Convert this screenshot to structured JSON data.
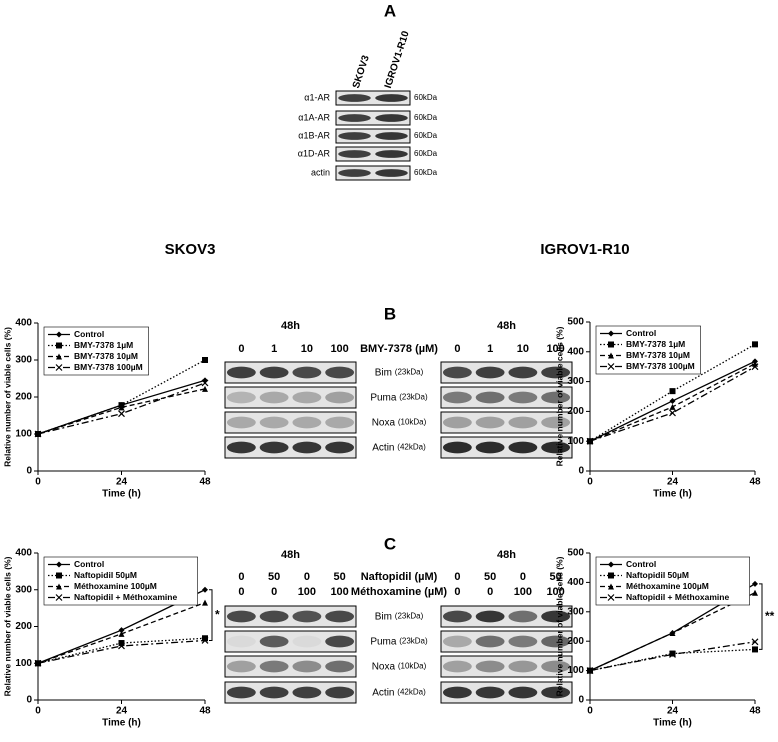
{
  "panel_labels": [
    "A",
    "B",
    "C"
  ],
  "section_titles": [
    "SKOV3",
    "IGROV1-R10"
  ],
  "panel_a": {
    "columns": [
      "SKOV3",
      "IGROV1-R10"
    ],
    "rows": [
      {
        "label": "α1-AR",
        "size": "60kDa"
      },
      {
        "label": "α1A-AR",
        "size": "60kDa"
      },
      {
        "label": "α1B-AR",
        "size": "60kDa"
      },
      {
        "label": "α1D-AR",
        "size": "60kDa"
      },
      {
        "label": "actin",
        "size": "60kDa"
      }
    ]
  },
  "panel_b_blots": {
    "times": [
      "48h",
      "48h"
    ],
    "treatments": [
      {
        "label": "BMY-7378 (µM)",
        "doses": [
          0,
          1,
          10,
          100
        ]
      }
    ],
    "rows": [
      {
        "label": "Bim",
        "size": "(23kDa)"
      },
      {
        "label": "Puma",
        "size": "(23kDa)"
      },
      {
        "label": "Noxa",
        "size": "(10kDa)"
      },
      {
        "label": "Actin",
        "size": "(42kDa)"
      }
    ]
  },
  "panel_c_blots": {
    "times": [
      "48h",
      "48h"
    ],
    "treatments": [
      {
        "label": "Naftopidil (µM)",
        "doses": [
          0,
          50,
          0,
          50
        ]
      },
      {
        "label": "Méthoxamine (µM)",
        "doses": [
          0,
          0,
          100,
          100
        ]
      }
    ],
    "rows": [
      {
        "label": "Bim",
        "size": "(23kDa)"
      },
      {
        "label": "Puma",
        "size": "(23kDa)"
      },
      {
        "label": "Noxa",
        "size": "(10kDa)"
      },
      {
        "label": "Actin",
        "size": "(42kDa)"
      }
    ]
  },
  "chart_data": [
    {
      "type": "line",
      "x_label": "Time (h)",
      "y_label": "Relative number of viable cells (%)",
      "x": [
        0,
        24,
        48
      ],
      "xlim": [
        0,
        48
      ],
      "xticks": [
        0,
        24,
        48
      ],
      "ylim": [
        0,
        400
      ],
      "yticks": [
        0,
        100,
        200,
        300,
        400
      ],
      "series": [
        {
          "name": "Control",
          "color": "#000000",
          "dash": "solid",
          "marker": "diamond",
          "values": [
            100,
            178,
            245
          ]
        },
        {
          "name": "BMY-7378 1µM",
          "color": "#000000",
          "dash": "dotted",
          "marker": "square",
          "values": [
            100,
            178,
            300
          ]
        },
        {
          "name": "BMY-7378 10µM",
          "color": "#000000",
          "dash": "dashed",
          "marker": "triangle",
          "values": [
            100,
            172,
            222
          ]
        },
        {
          "name": "BMY-7378 100µM",
          "color": "#000000",
          "dash": "dashdot",
          "marker": "x",
          "values": [
            100,
            155,
            238
          ]
        }
      ]
    },
    {
      "type": "line",
      "x_label": "Time (h)",
      "y_label": "Relative number of viable cells (%)",
      "x": [
        0,
        24,
        48
      ],
      "xlim": [
        0,
        48
      ],
      "xticks": [
        0,
        24,
        48
      ],
      "ylim": [
        0,
        500
      ],
      "yticks": [
        0,
        100,
        200,
        300,
        400,
        500
      ],
      "series": [
        {
          "name": "Control",
          "color": "#000000",
          "dash": "solid",
          "marker": "diamond",
          "values": [
            100,
            235,
            368
          ]
        },
        {
          "name": "BMY-7378 1µM",
          "color": "#000000",
          "dash": "dotted",
          "marker": "square",
          "values": [
            100,
            268,
            425
          ]
        },
        {
          "name": "BMY-7378 10µM",
          "color": "#000000",
          "dash": "dashed",
          "marker": "triangle",
          "values": [
            100,
            215,
            360
          ]
        },
        {
          "name": "BMY-7378 100µM",
          "color": "#000000",
          "dash": "dashdot",
          "marker": "x",
          "values": [
            100,
            195,
            350
          ]
        }
      ]
    },
    {
      "type": "line",
      "x_label": "Time (h)",
      "y_label": "Relative number of viable cells (%)",
      "x": [
        0,
        24,
        48
      ],
      "xlim": [
        0,
        48
      ],
      "xticks": [
        0,
        24,
        48
      ],
      "ylim": [
        0,
        400
      ],
      "yticks": [
        0,
        100,
        200,
        300,
        400
      ],
      "annotation": "*",
      "series": [
        {
          "name": "Control",
          "color": "#000000",
          "dash": "solid",
          "marker": "diamond",
          "values": [
            100,
            190,
            300
          ]
        },
        {
          "name": "Naftopidil 50µM",
          "color": "#000000",
          "dash": "dotted",
          "marker": "square",
          "values": [
            100,
            155,
            168
          ]
        },
        {
          "name": "Méthoxamine 100µM",
          "color": "#000000",
          "dash": "dashed",
          "marker": "triangle",
          "values": [
            100,
            180,
            265
          ]
        },
        {
          "name": "Naftopidil + Méthoxamine",
          "color": "#000000",
          "dash": "dashdot",
          "marker": "x",
          "values": [
            100,
            147,
            162
          ]
        }
      ]
    },
    {
      "type": "line",
      "x_label": "Time (h)",
      "y_label": "Relative number of viable cells (%)",
      "x": [
        0,
        24,
        48
      ],
      "xlim": [
        0,
        48
      ],
      "xticks": [
        0,
        24,
        48
      ],
      "ylim": [
        0,
        500
      ],
      "yticks": [
        0,
        100,
        200,
        300,
        400,
        500
      ],
      "annotation": "**",
      "series": [
        {
          "name": "Control",
          "color": "#000000",
          "dash": "solid",
          "marker": "diamond",
          "values": [
            100,
            228,
            395
          ]
        },
        {
          "name": "Naftopidil 50µM",
          "color": "#000000",
          "dash": "dotted",
          "marker": "square",
          "values": [
            100,
            158,
            172
          ]
        },
        {
          "name": "Méthoxamine 100µM",
          "color": "#000000",
          "dash": "dashed",
          "marker": "triangle",
          "values": [
            100,
            228,
            365
          ]
        },
        {
          "name": "Naftopidil + Méthoxamine",
          "color": "#000000",
          "dash": "dashdot",
          "marker": "x",
          "values": [
            100,
            155,
            198
          ]
        }
      ]
    }
  ]
}
